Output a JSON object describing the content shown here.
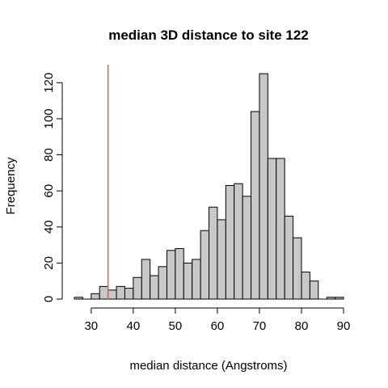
{
  "chart_data": {
    "type": "bar",
    "title": "median 3D distance to site 122",
    "xlabel": "median distance (Angstroms)",
    "ylabel": "Frequency",
    "bins": [
      {
        "from": 26,
        "to": 28,
        "count": 1
      },
      {
        "from": 28,
        "to": 30,
        "count": 0
      },
      {
        "from": 30,
        "to": 32,
        "count": 3
      },
      {
        "from": 32,
        "to": 34,
        "count": 7
      },
      {
        "from": 34,
        "to": 36,
        "count": 5
      },
      {
        "from": 36,
        "to": 38,
        "count": 7
      },
      {
        "from": 38,
        "to": 40,
        "count": 6
      },
      {
        "from": 40,
        "to": 42,
        "count": 12
      },
      {
        "from": 42,
        "to": 44,
        "count": 22
      },
      {
        "from": 44,
        "to": 46,
        "count": 13
      },
      {
        "from": 46,
        "to": 48,
        "count": 18
      },
      {
        "from": 48,
        "to": 50,
        "count": 27
      },
      {
        "from": 50,
        "to": 52,
        "count": 28
      },
      {
        "from": 52,
        "to": 54,
        "count": 20
      },
      {
        "from": 54,
        "to": 56,
        "count": 22
      },
      {
        "from": 56,
        "to": 58,
        "count": 38
      },
      {
        "from": 58,
        "to": 60,
        "count": 51
      },
      {
        "from": 60,
        "to": 62,
        "count": 44
      },
      {
        "from": 62,
        "to": 64,
        "count": 63
      },
      {
        "from": 64,
        "to": 66,
        "count": 64
      },
      {
        "from": 66,
        "to": 68,
        "count": 57
      },
      {
        "from": 68,
        "to": 70,
        "count": 104
      },
      {
        "from": 70,
        "to": 72,
        "count": 125
      },
      {
        "from": 72,
        "to": 74,
        "count": 78
      },
      {
        "from": 74,
        "to": 76,
        "count": 78
      },
      {
        "from": 76,
        "to": 78,
        "count": 46
      },
      {
        "from": 78,
        "to": 80,
        "count": 34
      },
      {
        "from": 80,
        "to": 82,
        "count": 15
      },
      {
        "from": 82,
        "to": 84,
        "count": 10
      },
      {
        "from": 84,
        "to": 86,
        "count": 0
      },
      {
        "from": 86,
        "to": 88,
        "count": 1
      },
      {
        "from": 88,
        "to": 90,
        "count": 1
      }
    ],
    "reference_line": {
      "x": 34,
      "color": "#e06666"
    },
    "bar_color": "#c8c8c8",
    "xlim": [
      26,
      90
    ],
    "ylim": [
      0,
      130
    ],
    "xticks": [
      30,
      40,
      50,
      60,
      70,
      80,
      90
    ],
    "yticks": [
      0,
      20,
      40,
      60,
      80,
      100,
      120
    ],
    "grid": false
  }
}
